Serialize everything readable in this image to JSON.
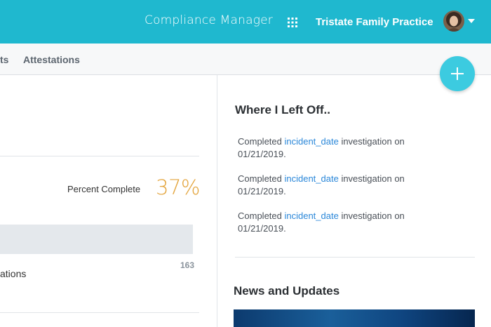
{
  "header": {
    "app_title": "Compliance Manager",
    "practice_name": "Tristate Family Practice",
    "brand_color": "#1fb8cf",
    "apps_icon": "grid-icon",
    "avatar_icon": "user-avatar"
  },
  "subnav": {
    "tabs": [
      {
        "label": "ts"
      },
      {
        "label": "Attestations"
      }
    ]
  },
  "fab": {
    "icon": "plus-icon"
  },
  "progress": {
    "label": "Percent Complete",
    "value_text": "37%",
    "count": "163",
    "row_label": "ations"
  },
  "where_left_off": {
    "title": "Where I Left Off..",
    "items": [
      {
        "prefix": "Completed ",
        "link": "incident_date",
        "suffix": " investigation on 01/21/2019."
      },
      {
        "prefix": "Completed ",
        "link": "incident_date",
        "suffix": " investigation on 01/21/2019."
      },
      {
        "prefix": "Completed ",
        "link": "incident_date",
        "suffix": " investigation on 01/21/2019."
      }
    ]
  },
  "news": {
    "title": "News and Updates"
  }
}
